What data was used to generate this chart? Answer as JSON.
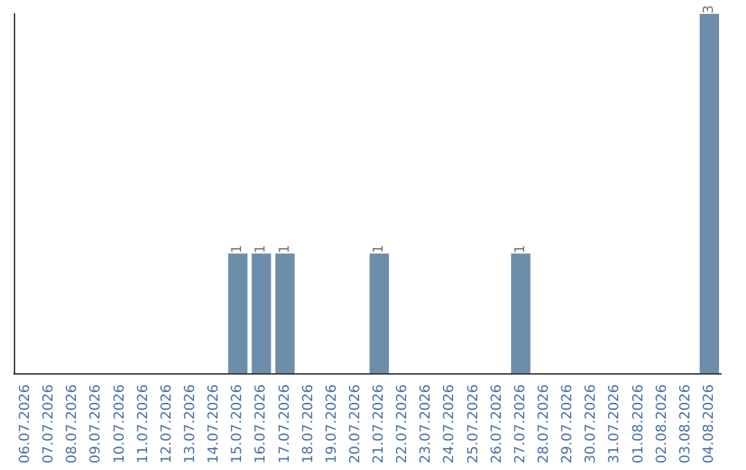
{
  "chart_data": {
    "type": "bar",
    "categories": [
      "06.07.2026",
      "07.07.2026",
      "08.07.2026",
      "09.07.2026",
      "10.07.2026",
      "11.07.2026",
      "12.07.2026",
      "13.07.2026",
      "14.07.2026",
      "15.07.2026",
      "16.07.2026",
      "17.07.2026",
      "18.07.2026",
      "19.07.2026",
      "20.07.2026",
      "21.07.2026",
      "22.07.2026",
      "23.07.2026",
      "24.07.2026",
      "25.07.2026",
      "26.07.2026",
      "27.07.2026",
      "28.07.2026",
      "29.07.2026",
      "30.07.2026",
      "31.07.2026",
      "01.08.2026",
      "02.08.2026",
      "03.08.2026",
      "04.08.2026"
    ],
    "values": [
      0,
      0,
      0,
      0,
      0,
      0,
      0,
      0,
      0,
      1,
      1,
      1,
      0,
      0,
      0,
      1,
      0,
      0,
      0,
      0,
      0,
      1,
      0,
      0,
      0,
      0,
      0,
      0,
      0,
      3
    ],
    "value_labels": [
      null,
      null,
      null,
      null,
      null,
      null,
      null,
      null,
      null,
      "1",
      "1",
      "1",
      null,
      null,
      null,
      "1",
      null,
      null,
      null,
      null,
      null,
      "1",
      null,
      null,
      null,
      null,
      null,
      null,
      null,
      "3"
    ],
    "color": "#6d8eab",
    "tick_labels": "x"
  }
}
